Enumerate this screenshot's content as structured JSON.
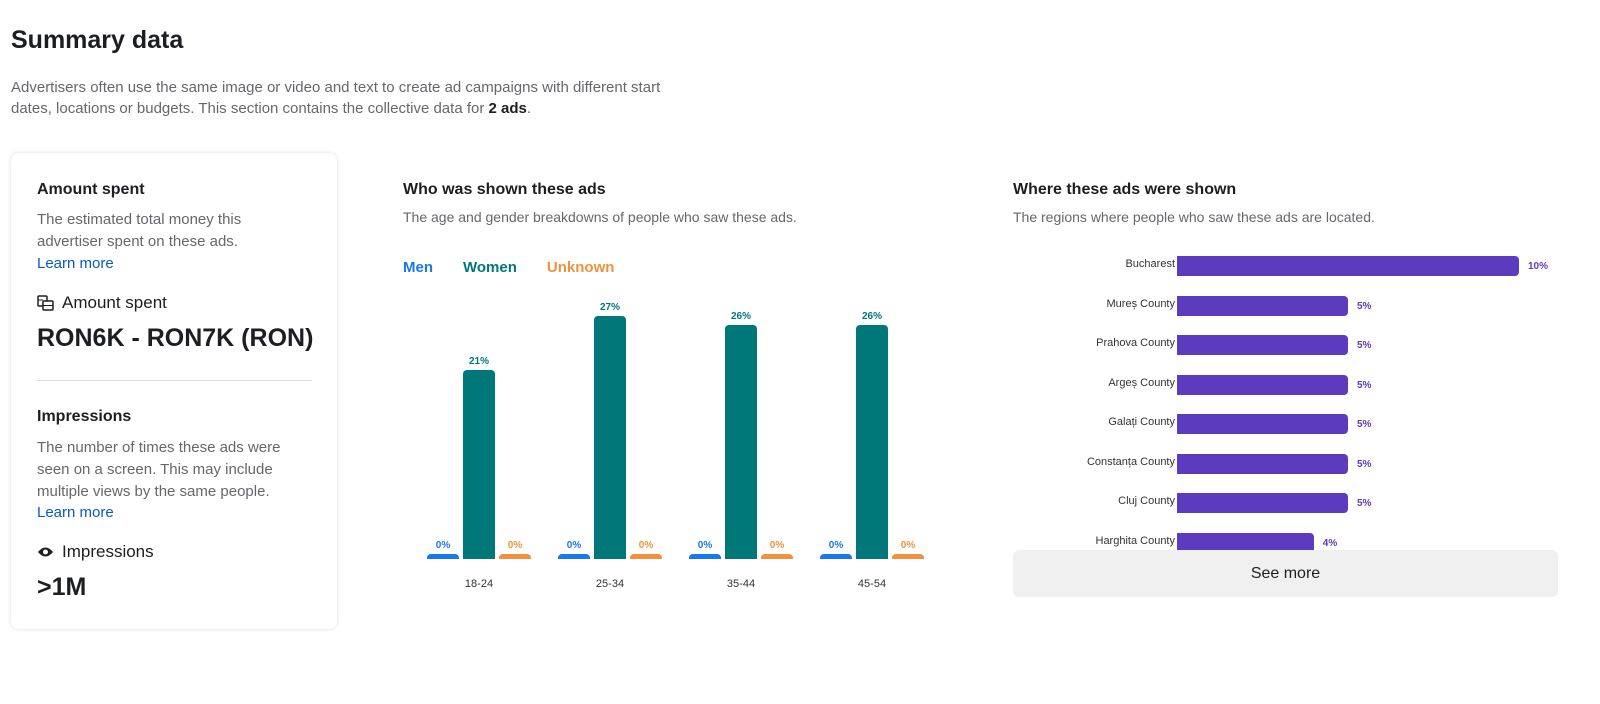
{
  "title": "Summary data",
  "intro": {
    "text": "Advertisers often use the same image or video and text to create ad campaigns with different start dates, locations or budgets. This section contains the collective data for ",
    "bold": "2 ads",
    "end": "."
  },
  "amount": {
    "heading": "Amount spent",
    "desc": "The estimated total money this advertiser spent on these ads.",
    "link": "Learn more",
    "label": "Amount spent",
    "value": "RON6K - RON7K (RON)",
    "icon": "coins-icon"
  },
  "impressions": {
    "heading": "Impressions",
    "desc": "The number of times these ads were seen on a screen. This may include multiple views by the same people.",
    "link": "Learn more",
    "label": "Impressions",
    "value": ">1M",
    "icon": "eye-icon"
  },
  "colors": {
    "men": "#1877f2",
    "women": "#00787a",
    "unknown": "#f2913d",
    "region": "#5c3bbf"
  },
  "chart_data": [
    {
      "type": "bar",
      "title": "Who was shown these ads",
      "subtitle": "The age and gender breakdowns of people who saw these ads.",
      "legend": [
        "Men",
        "Women",
        "Unknown"
      ],
      "legend_placement": "top-left",
      "categories": [
        "18-24",
        "25-34",
        "35-44",
        "45-54"
      ],
      "series": [
        {
          "name": "Men",
          "values": [
            0,
            0,
            0,
            0
          ],
          "labels": [
            "0%",
            "0%",
            "0%",
            "0%"
          ]
        },
        {
          "name": "Women",
          "values": [
            21,
            27,
            26,
            26
          ],
          "labels": [
            "21%",
            "27%",
            "26%",
            "26%"
          ]
        },
        {
          "name": "Unknown",
          "values": [
            0,
            0,
            0,
            0
          ],
          "labels": [
            "0%",
            "0%",
            "0%",
            "0%"
          ]
        }
      ]
    },
    {
      "type": "bar",
      "orientation": "horizontal",
      "title": "Where these ads were shown",
      "subtitle": "The regions where people who saw these ads are located.",
      "categories": [
        "Bucharest",
        "Mureș County",
        "Prahova County",
        "Argeș County",
        "Galați County",
        "Constanța County",
        "Cluj County",
        "Harghita County"
      ],
      "values": [
        10,
        5,
        5,
        5,
        5,
        5,
        5,
        4
      ],
      "labels": [
        "10%",
        "5%",
        "5%",
        "5%",
        "5%",
        "5%",
        "5%",
        "4%"
      ]
    }
  ],
  "see_more": "See more"
}
